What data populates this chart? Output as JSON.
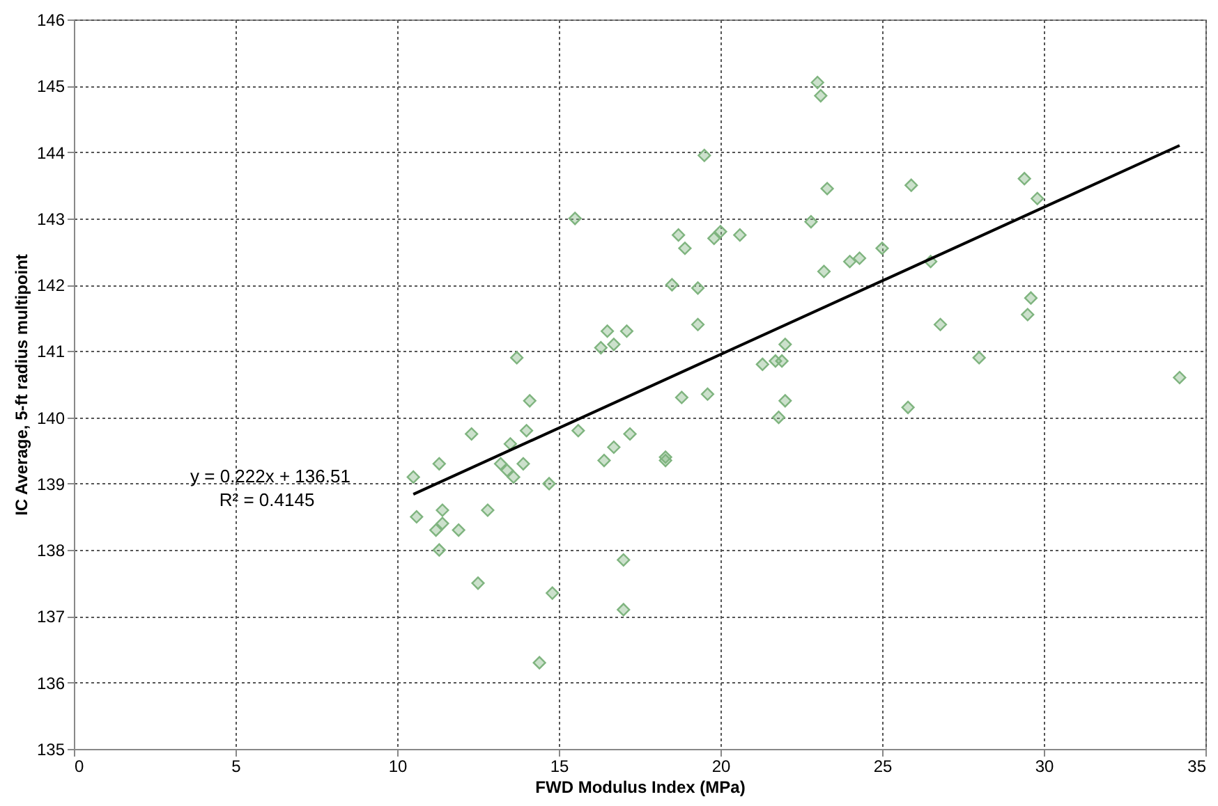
{
  "chart_data": {
    "type": "scatter",
    "xlabel": "FWD Modulus Index (MPa)",
    "ylabel": "IC Average, 5-ft radius multipoint",
    "xlim": [
      0,
      35
    ],
    "xticks": [
      0,
      5,
      10,
      15,
      20,
      25,
      30,
      35
    ],
    "ylim": [
      135,
      146
    ],
    "yticks": [
      135,
      136,
      137,
      138,
      139,
      140,
      141,
      142,
      143,
      144,
      145,
      146
    ],
    "grid": true,
    "series": [
      {
        "color": "#7fb47f",
        "marker": "diamond",
        "x": [
          10.5,
          10.6,
          11.2,
          11.3,
          11.3,
          11.4,
          11.4,
          11.9,
          12.3,
          12.5,
          12.8,
          13.2,
          13.4,
          13.5,
          13.6,
          13.7,
          13.9,
          14.0,
          14.1,
          14.4,
          14.7,
          14.8,
          15.5,
          15.6,
          16.3,
          16.4,
          16.5,
          16.7,
          16.7,
          17.0,
          17.0,
          17.1,
          17.2,
          18.3,
          18.3,
          18.5,
          18.7,
          18.8,
          18.9,
          19.3,
          19.3,
          19.5,
          19.6,
          19.8,
          20.0,
          20.6,
          21.3,
          21.7,
          21.8,
          21.9,
          22.0,
          22.0,
          22.8,
          23.0,
          23.1,
          23.2,
          23.3,
          24.0,
          24.3,
          25.0,
          25.8,
          25.9,
          26.5,
          26.8,
          28.0,
          29.4,
          29.5,
          29.6,
          29.8,
          34.2
        ],
        "values": [
          139.1,
          138.5,
          138.3,
          139.3,
          138.0,
          138.6,
          138.4,
          138.3,
          139.75,
          137.5,
          138.6,
          139.3,
          139.2,
          139.6,
          139.1,
          140.9,
          139.3,
          139.8,
          140.25,
          136.3,
          139.0,
          137.35,
          143.0,
          139.8,
          141.05,
          139.35,
          141.3,
          141.1,
          139.55,
          137.85,
          137.1,
          141.3,
          139.75,
          139.4,
          139.35,
          142.0,
          142.75,
          140.3,
          142.55,
          141.4,
          141.95,
          143.95,
          140.35,
          142.7,
          142.8,
          142.75,
          140.8,
          140.85,
          140.0,
          140.85,
          140.25,
          141.1,
          142.95,
          145.05,
          144.85,
          142.2,
          143.45,
          142.35,
          142.4,
          142.55,
          140.15,
          143.5,
          142.35,
          141.4,
          140.9,
          143.6,
          141.55,
          141.8,
          143.3,
          140.6
        ]
      },
      {
        "type": "line",
        "color": "#000000",
        "x": [
          10.5,
          34.2
        ],
        "values": [
          138.84,
          144.1
        ]
      }
    ],
    "annotations": [
      "y = 0.222x + 136.51",
      "R² = 0.4145"
    ]
  }
}
